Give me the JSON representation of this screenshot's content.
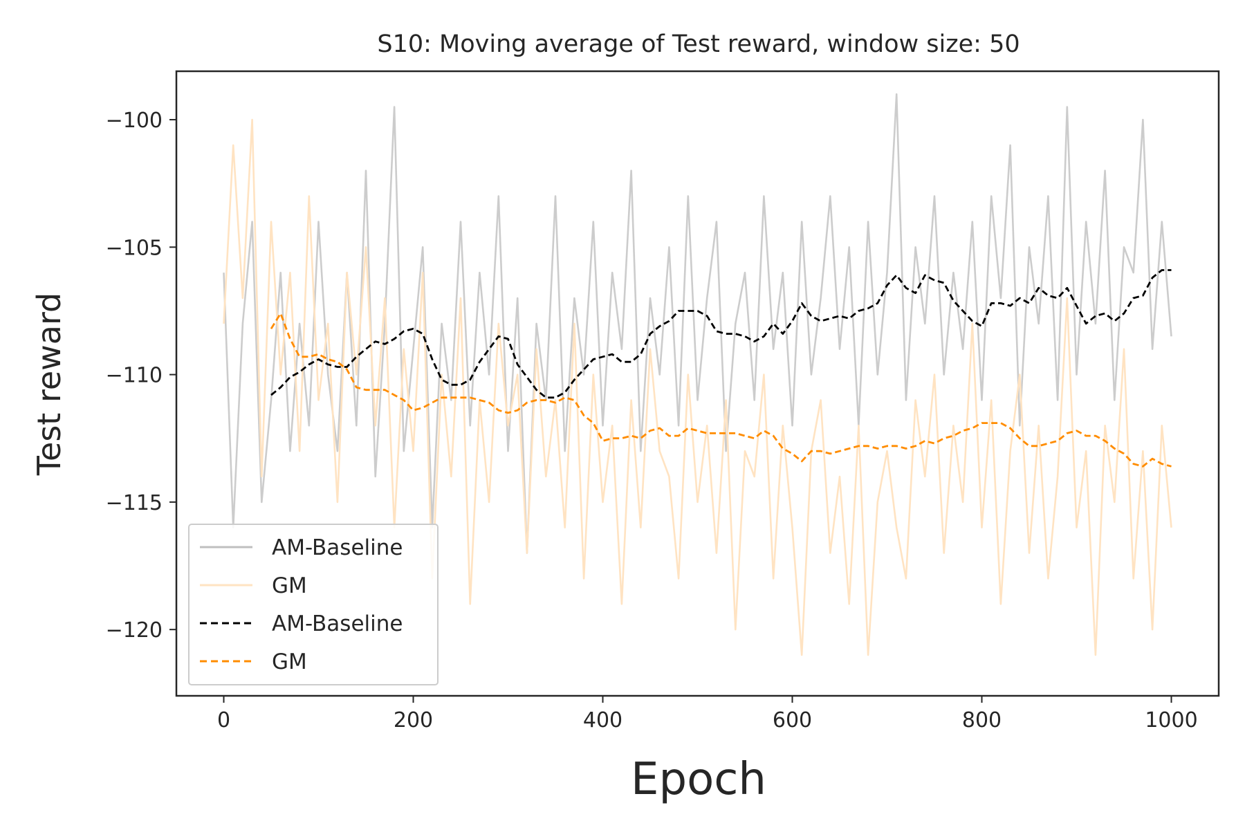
{
  "chart_data": {
    "type": "line",
    "title": "S10: Moving average of Test reward, window size: 50",
    "xlabel": "Epoch",
    "ylabel": "Test reward",
    "xlim": [
      -50,
      1050
    ],
    "ylim": [
      -122.6,
      -98.1
    ],
    "xticks": [
      0,
      200,
      400,
      600,
      800,
      1000
    ],
    "xtick_labels": [
      "0",
      "200",
      "400",
      "600",
      "800",
      "1000"
    ],
    "yticks": [
      -100,
      -105,
      -110,
      -115,
      -120
    ],
    "ytick_labels": [
      "−100",
      "−105",
      "−110",
      "−115",
      "−120"
    ],
    "grid": false,
    "legend_position": "lower-left",
    "legend": [
      {
        "label": "AM-Baseline",
        "color": "#bfbfbf",
        "style": "solid"
      },
      {
        "label": "GM",
        "color": "#ffe3c2",
        "style": "solid"
      },
      {
        "label": "AM-Baseline",
        "color": "#000000",
        "style": "dashed"
      },
      {
        "label": "GM",
        "color": "#ff8c00",
        "style": "dashed"
      }
    ],
    "series": [
      {
        "name": "AM-Baseline",
        "kind": "raw",
        "color": "#bfbfbf",
        "style": "solid",
        "x": [
          0,
          10,
          20,
          30,
          40,
          50,
          60,
          70,
          80,
          90,
          100,
          110,
          120,
          130,
          140,
          150,
          160,
          170,
          180,
          190,
          200,
          210,
          220,
          230,
          240,
          250,
          260,
          270,
          280,
          290,
          300,
          310,
          320,
          330,
          340,
          350,
          360,
          370,
          380,
          390,
          400,
          410,
          420,
          430,
          440,
          450,
          460,
          470,
          480,
          490,
          500,
          510,
          520,
          530,
          540,
          550,
          560,
          570,
          580,
          590,
          600,
          610,
          620,
          630,
          640,
          650,
          660,
          670,
          680,
          690,
          700,
          710,
          720,
          730,
          740,
          750,
          760,
          770,
          780,
          790,
          800,
          810,
          820,
          830,
          840,
          850,
          860,
          870,
          880,
          890,
          900,
          910,
          920,
          930,
          940,
          950,
          960,
          970,
          980,
          990,
          1000
        ],
        "y": [
          -106,
          -116,
          -108,
          -104,
          -115,
          -111,
          -106,
          -113,
          -108,
          -112,
          -104,
          -110,
          -113,
          -106,
          -112,
          -102,
          -114,
          -108,
          -99.5,
          -113,
          -109,
          -105,
          -116,
          -108,
          -111,
          -104,
          -112,
          -106,
          -110,
          -103,
          -113,
          -107,
          -117,
          -108,
          -111,
          -103,
          -113,
          -107,
          -110,
          -104,
          -112,
          -106,
          -109,
          -102,
          -113,
          -107,
          -110,
          -105,
          -112,
          -103,
          -111,
          -107,
          -104,
          -113,
          -108,
          -106,
          -111,
          -103,
          -109,
          -106,
          -112,
          -104,
          -110,
          -107,
          -103,
          -109,
          -105,
          -112,
          -104,
          -110,
          -106,
          -99,
          -111,
          -105,
          -108,
          -103,
          -110,
          -106,
          -109,
          -104,
          -111,
          -103,
          -107,
          -101,
          -112,
          -105,
          -108,
          -103,
          -111,
          -99.5,
          -110,
          -104,
          -108,
          -102,
          -111,
          -105,
          -106,
          -100,
          -109,
          -104,
          -108.5
        ]
      },
      {
        "name": "GM",
        "kind": "raw",
        "color": "#ffe3c2",
        "style": "solid",
        "x": [
          0,
          10,
          20,
          30,
          40,
          50,
          60,
          70,
          80,
          90,
          100,
          110,
          120,
          130,
          140,
          150,
          160,
          170,
          180,
          190,
          200,
          210,
          220,
          230,
          240,
          250,
          260,
          270,
          280,
          290,
          300,
          310,
          320,
          330,
          340,
          350,
          360,
          370,
          380,
          390,
          400,
          410,
          420,
          430,
          440,
          450,
          460,
          470,
          480,
          490,
          500,
          510,
          520,
          530,
          540,
          550,
          560,
          570,
          580,
          590,
          600,
          610,
          620,
          630,
          640,
          650,
          660,
          670,
          680,
          690,
          700,
          710,
          720,
          730,
          740,
          750,
          760,
          770,
          780,
          790,
          800,
          810,
          820,
          830,
          840,
          850,
          860,
          870,
          880,
          890,
          900,
          910,
          920,
          930,
          940,
          950,
          960,
          970,
          980,
          990,
          1000
        ],
        "y": [
          -108,
          -101,
          -107,
          -100,
          -114,
          -104,
          -110,
          -106,
          -113,
          -103,
          -111,
          -108,
          -115,
          -106,
          -110,
          -105,
          -112,
          -107,
          -116,
          -109,
          -113,
          -106,
          -118,
          -110,
          -114,
          -107,
          -119,
          -111,
          -115,
          -108,
          -112,
          -110,
          -117,
          -109,
          -114,
          -111,
          -116,
          -108,
          -118,
          -110,
          -115,
          -112,
          -119,
          -111,
          -116,
          -109,
          -113,
          -114,
          -118,
          -110,
          -115,
          -112,
          -117,
          -111,
          -120,
          -113,
          -114,
          -110,
          -118,
          -112,
          -116,
          -121,
          -113,
          -111,
          -117,
          -114,
          -119,
          -112,
          -121,
          -115,
          -113,
          -116,
          -118,
          -111,
          -114,
          -110,
          -117,
          -112,
          -115,
          -108,
          -116,
          -111,
          -119,
          -113,
          -110,
          -117,
          -112,
          -118,
          -114,
          -107,
          -116,
          -113,
          -121,
          -112,
          -115,
          -109,
          -118,
          -113,
          -120,
          -112,
          -116
        ]
      },
      {
        "name": "AM-Baseline",
        "kind": "moving_average",
        "color": "#000000",
        "style": "dashed",
        "x": [
          50,
          60,
          70,
          80,
          90,
          100,
          110,
          120,
          130,
          140,
          150,
          160,
          170,
          180,
          190,
          200,
          210,
          220,
          230,
          240,
          250,
          260,
          270,
          280,
          290,
          300,
          310,
          320,
          330,
          340,
          350,
          360,
          370,
          380,
          390,
          400,
          410,
          420,
          430,
          440,
          450,
          460,
          470,
          480,
          490,
          500,
          510,
          520,
          530,
          540,
          550,
          560,
          570,
          580,
          590,
          600,
          610,
          620,
          630,
          640,
          650,
          660,
          670,
          680,
          690,
          700,
          710,
          720,
          730,
          740,
          750,
          760,
          770,
          780,
          790,
          800,
          810,
          820,
          830,
          840,
          850,
          860,
          870,
          880,
          890,
          900,
          910,
          920,
          930,
          940,
          950,
          960,
          970,
          980,
          990,
          1000
        ],
        "y": [
          -110.8,
          -110.5,
          -110.1,
          -109.9,
          -109.6,
          -109.4,
          -109.6,
          -109.7,
          -109.7,
          -109.3,
          -109.0,
          -108.7,
          -108.8,
          -108.6,
          -108.3,
          -108.2,
          -108.4,
          -109.4,
          -110.2,
          -110.4,
          -110.4,
          -110.2,
          -109.5,
          -109.0,
          -108.5,
          -108.6,
          -109.6,
          -110.1,
          -110.6,
          -110.9,
          -110.9,
          -110.7,
          -110.2,
          -109.8,
          -109.4,
          -109.3,
          -109.2,
          -109.5,
          -109.5,
          -109.2,
          -108.4,
          -108.1,
          -107.9,
          -107.5,
          -107.5,
          -107.5,
          -107.7,
          -108.3,
          -108.4,
          -108.4,
          -108.5,
          -108.7,
          -108.5,
          -108.0,
          -108.4,
          -107.9,
          -107.2,
          -107.7,
          -107.9,
          -107.8,
          -107.7,
          -107.8,
          -107.5,
          -107.4,
          -107.2,
          -106.5,
          -106.1,
          -106.6,
          -106.8,
          -106.1,
          -106.3,
          -106.4,
          -107.1,
          -107.5,
          -107.9,
          -108.1,
          -107.2,
          -107.2,
          -107.3,
          -107.0,
          -107.2,
          -106.6,
          -106.9,
          -107.0,
          -106.6,
          -107.3,
          -108.0,
          -107.7,
          -107.6,
          -107.9,
          -107.6,
          -107.0,
          -106.9,
          -106.2,
          -105.9,
          -105.9
        ]
      },
      {
        "name": "GM",
        "kind": "moving_average",
        "color": "#ff8c00",
        "style": "dashed",
        "x": [
          50,
          60,
          70,
          80,
          90,
          100,
          110,
          120,
          130,
          140,
          150,
          160,
          170,
          180,
          190,
          200,
          210,
          220,
          230,
          240,
          250,
          260,
          270,
          280,
          290,
          300,
          310,
          320,
          330,
          340,
          350,
          360,
          370,
          380,
          390,
          400,
          410,
          420,
          430,
          440,
          450,
          460,
          470,
          480,
          490,
          500,
          510,
          520,
          530,
          540,
          550,
          560,
          570,
          580,
          590,
          600,
          610,
          620,
          630,
          640,
          650,
          660,
          670,
          680,
          690,
          700,
          710,
          720,
          730,
          740,
          750,
          760,
          770,
          780,
          790,
          800,
          810,
          820,
          830,
          840,
          850,
          860,
          870,
          880,
          890,
          900,
          910,
          920,
          930,
          940,
          950,
          960,
          970,
          980,
          990,
          1000
        ],
        "y": [
          -108.2,
          -107.6,
          -108.6,
          -109.3,
          -109.3,
          -109.2,
          -109.4,
          -109.5,
          -109.8,
          -110.5,
          -110.6,
          -110.6,
          -110.6,
          -110.8,
          -111.0,
          -111.4,
          -111.3,
          -111.1,
          -110.9,
          -110.9,
          -110.9,
          -110.9,
          -111.0,
          -111.1,
          -111.4,
          -111.5,
          -111.4,
          -111.1,
          -111.0,
          -111.0,
          -111.1,
          -110.9,
          -111.0,
          -111.6,
          -111.9,
          -112.6,
          -112.5,
          -112.5,
          -112.4,
          -112.5,
          -112.2,
          -112.1,
          -112.4,
          -112.4,
          -112.1,
          -112.2,
          -112.3,
          -112.3,
          -112.3,
          -112.3,
          -112.4,
          -112.5,
          -112.2,
          -112.4,
          -112.9,
          -113.1,
          -113.4,
          -113.0,
          -113.0,
          -113.1,
          -113.0,
          -112.9,
          -112.8,
          -112.8,
          -112.9,
          -112.8,
          -112.8,
          -112.9,
          -112.8,
          -112.6,
          -112.7,
          -112.5,
          -112.4,
          -112.2,
          -112.1,
          -111.9,
          -111.9,
          -111.9,
          -112.1,
          -112.5,
          -112.8,
          -112.8,
          -112.7,
          -112.6,
          -112.3,
          -112.2,
          -112.4,
          -112.4,
          -112.6,
          -112.9,
          -113.1,
          -113.5,
          -113.6,
          -113.3,
          -113.5,
          -113.6
        ]
      }
    ]
  }
}
